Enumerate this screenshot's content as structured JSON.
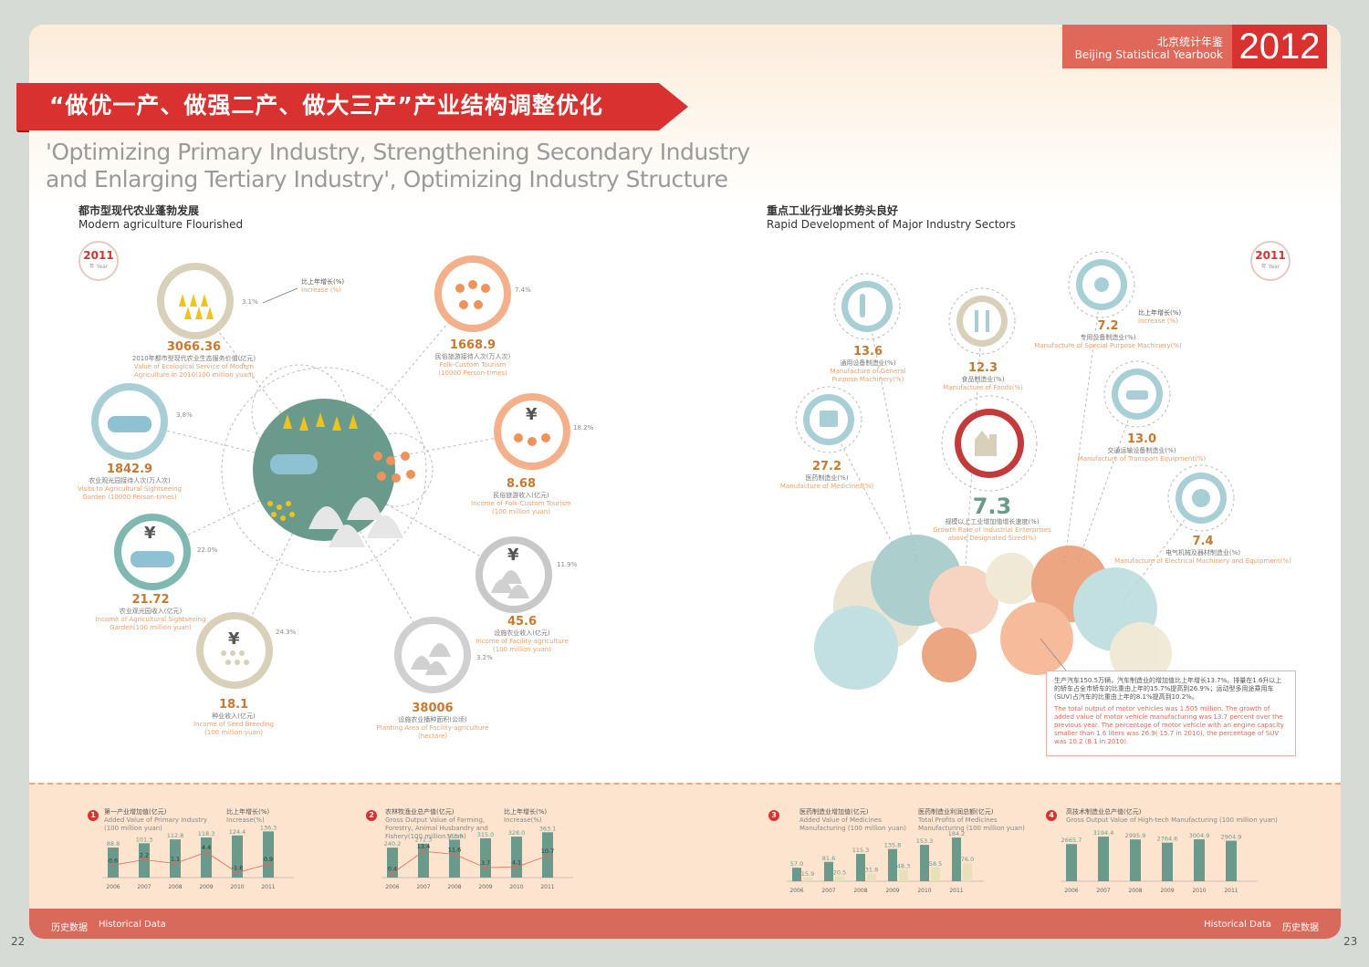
{
  "header": {
    "cn": "北京统计年鉴",
    "en": "Beijing Statistical Yearbook",
    "year": "2012"
  },
  "banner": {
    "cn_title": "“做优一产、做强二产、做大三产”产业结构调整优化",
    "en_title_line1": "'Optimizing Primary Industry, Strengthening Secondary Industry",
    "en_title_line2": "and Enlarging Tertiary Industry',  Optimizing Industry Structure"
  },
  "left": {
    "title_cn": "都市型现代农业蓬勃发展",
    "title_en": "Modern agriculture Flourished",
    "stamp_year": "2011",
    "stamp_label": "年 Year",
    "legend_cn": "比上年增长(%)",
    "legend_en": "Increase (%)",
    "items": [
      {
        "value": "3066.36",
        "pct": "3.1%",
        "cn": "2010年都市型现代农业生态服务价值(亿元)",
        "en": "Value of Ecological Service of Modern Agriculture in 2010(100 million yuan)"
      },
      {
        "value": "1668.9",
        "pct": "7.4%",
        "cn": "民俗旅游接待人次(万人次)",
        "en": "Folk-Custom Tourism (10000 Person-times)"
      },
      {
        "value": "1842.9",
        "pct": "3.8%",
        "cn": "农业观光园接待人次(万人次)",
        "en": "Visits to Agricultural Sightseeing Garden (10000 Person-times)"
      },
      {
        "value": "8.68",
        "pct": "18.2%",
        "cn": "民俗旅游收入(亿元)",
        "en": "Income of Folk-Custom Tourism (100 million yuan)"
      },
      {
        "value": "21.72",
        "pct": "22.0%",
        "cn": "农业观光园收入(亿元)",
        "en": "Income of Agricultural Sightseeing Garden(100 million yuan)"
      },
      {
        "value": "45.6",
        "pct": "11.9%",
        "cn": "设施农业收入(亿元)",
        "en": "Income of Facility-agriculture (100 million yuan)"
      },
      {
        "value": "18.1",
        "pct": "24.3%",
        "cn": "种业收入(亿元)",
        "en": "Income of Seed Breeding (100 million yuan)"
      },
      {
        "value": "38006",
        "pct": "3.2%",
        "cn": "设施农业播种面积(公顷)",
        "en": "Planting Area of Facility-agriculture (hectare)"
      }
    ]
  },
  "right": {
    "title_cn": "重点工业行业增长势头良好",
    "title_en": "Rapid Development of Major Industry Sectors",
    "stamp_year": "2011",
    "stamp_label": "年 Year",
    "legend_cn": "比上年增长(%)",
    "legend_en": "Increase (%)",
    "items": [
      {
        "value": "13.6",
        "cn": "通用设备制造业(%)",
        "en": "Manufacture of General Purpose Machinery(%)"
      },
      {
        "value": "12.3",
        "cn": "食品制造业(%)",
        "en": "Manufacture of Foods(%)"
      },
      {
        "value": "7.2",
        "cn": "专用设备制造业(%)",
        "en": "Manufacture of Special Purpose Machinery(%)"
      },
      {
        "value": "27.2",
        "cn": "医药制造业(%)",
        "en": "Manufacture of Medicines(%)"
      },
      {
        "value": "13.0",
        "cn": "交通运输设备制造业(%)",
        "en": "Manufacture of Transport Equipment(%)"
      },
      {
        "value": "7.3",
        "cn": "规模以上工业增加值增长速度(%)",
        "en": "Growth Rate of Industrial Enterprises above Designated Sized(%)"
      },
      {
        "value": "7.4",
        "cn": "电气机械及器材制造业(%)",
        "en": "Manufacture of Electrical Machinery and Equipment(%)"
      }
    ],
    "note_cn": "生产汽车150.5万辆，汽车制造业的增加值比上年增长13.7%。排量在1.6升以上的轿车占全市轿车的比重由上年的15.7%提高到26.9%；运动型多用途乘用车(SUV)占汽车的比重由上年的8.1%提高到10.2%。",
    "note_en": "The total output of motor vehicles was 1.505 million. The growth of added value of motor vehicle manufacturing was 13.7 percent over the previous year. The percentage of motor vehicle with an engine capacity smaller than 1.6 liters was 26.9( 15.7 in 2010), the percentage of SUV was 10.2 (8.1 in 2010)."
  },
  "charts": {
    "years": [
      "2006",
      "2007",
      "2008",
      "2009",
      "2010",
      "2011"
    ],
    "c1": {
      "num": "1",
      "cn": "第一产业增加值(亿元)",
      "en": "Added Value of Primary Industry (100 million yuan)",
      "leg2_cn": "比上年增长(%)",
      "leg2_en": "Increase(%)"
    },
    "c2": {
      "num": "2",
      "cn": "农林牧渔业总产值(亿元)",
      "en": "Gross Output Value of Farming, Forestry, Animal Husbandry and Fishery(100 million yuan)",
      "leg2_cn": "比上年增长(%)",
      "leg2_en": "Increase(%)"
    },
    "c3": {
      "num": "3",
      "cn": "医药制造业增加值(亿元)",
      "en": "Added Value of Medicines Manufacturing (100 million yuan)",
      "leg2_cn": "医药制造业利润总额(亿元)",
      "leg2_en": "Total Profits of Medicines Manufacturing (100 million yuan)"
    },
    "c4": {
      "num": "4",
      "cn": "高技术制造业总产值(亿元)",
      "en": "Gross Output Value of High-tech Manufacturing (100 million yuan)"
    }
  },
  "chart_data": [
    {
      "type": "bar",
      "categories": [
        "2006",
        "2007",
        "2008",
        "2009",
        "2010",
        "2011"
      ],
      "series": [
        {
          "name": "第一产业增加值(亿元)",
          "values": [
            88.8,
            101.3,
            112.8,
            118.3,
            124.4,
            136.3
          ]
        },
        {
          "name": "比上年增长(%)",
          "values": [
            0.6,
            2.2,
            1.1,
            4.4,
            -1.6,
            0.9
          ]
        }
      ]
    },
    {
      "type": "bar",
      "categories": [
        "2006",
        "2007",
        "2008",
        "2009",
        "2010",
        "2011"
      ],
      "series": [
        {
          "name": "农林牧渔业总产值(亿元)",
          "values": [
            240.2,
            272.3,
            303.9,
            315.0,
            328.0,
            363.1
          ]
        },
        {
          "name": "比上年增长(%)",
          "values": [
            0.4,
            13.4,
            11.6,
            3.7,
            4.1,
            10.7
          ]
        }
      ]
    },
    {
      "type": "bar",
      "categories": [
        "2006",
        "2007",
        "2008",
        "2009",
        "2010",
        "2011"
      ],
      "series": [
        {
          "name": "医药制造业增加值(亿元)",
          "values": [
            57.0,
            81.6,
            115.3,
            135.8,
            153.3,
            184.2
          ]
        },
        {
          "name": "医药制造业利润总额(亿元)",
          "values": [
            15.9,
            20.5,
            31.8,
            48.3,
            58.5,
            76.0
          ]
        }
      ]
    },
    {
      "type": "bar",
      "categories": [
        "2006",
        "2007",
        "2008",
        "2009",
        "2010",
        "2011"
      ],
      "series": [
        {
          "name": "高技术制造业总产值(亿元)",
          "values": [
            2665.7,
            3194.4,
            2995.9,
            2764.6,
            3004.9,
            2904.9
          ]
        }
      ]
    }
  ],
  "footer": {
    "left_cn": "历史数据",
    "left_en": "Historical Data",
    "right_en": "Historical Data",
    "right_cn": "历史数据",
    "page_left": "22",
    "page_right": "23"
  }
}
